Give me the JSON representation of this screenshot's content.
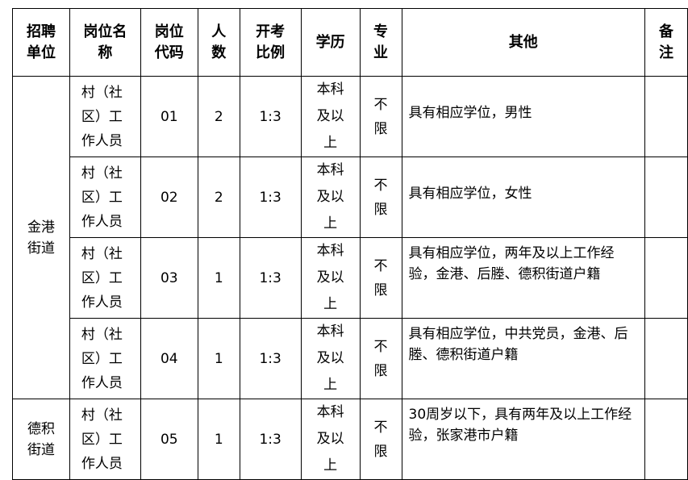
{
  "headers": [
    "招聘单位",
    "岗位名称",
    "岗位代码",
    "人数",
    "开考比例",
    "学历",
    "专业",
    "其他",
    "备注"
  ],
  "header_lines": [
    [
      "招聘",
      "单位"
    ],
    [
      "岗位名",
      "称"
    ],
    [
      "岗位",
      "代码"
    ],
    [
      "人",
      "数"
    ],
    [
      "开考",
      "比例"
    ],
    [
      "学历"
    ],
    [
      "专",
      "业"
    ],
    [
      "其他"
    ],
    [
      "备",
      "注"
    ]
  ],
  "units": [
    {
      "lines": [
        "金港",
        "街道"
      ]
    },
    {
      "lines": [
        "德积",
        "街道"
      ]
    }
  ],
  "rows": [
    {
      "name": [
        "村（社",
        "区）工",
        "作人员"
      ],
      "code": "01",
      "count": "2",
      "ratio": "1:3",
      "edu": [
        "本科",
        "及以",
        "上"
      ],
      "major": [
        "不",
        "限"
      ],
      "other": "具有相应学位，男性",
      "note": ""
    },
    {
      "name": [
        "村（社",
        "区）工",
        "作人员"
      ],
      "code": "02",
      "count": "2",
      "ratio": "1:3",
      "edu": [
        "本科",
        "及以",
        "上"
      ],
      "major": [
        "不",
        "限"
      ],
      "other": "具有相应学位，女性",
      "note": ""
    },
    {
      "name": [
        "村（社",
        "区）工",
        "作人员"
      ],
      "code": "03",
      "count": "1",
      "ratio": "1:3",
      "edu": [
        "本科",
        "及以",
        "上"
      ],
      "major": [
        "不",
        "限"
      ],
      "other": "具有相应学位，两年及以上工作经验，金港、后塍、德积街道户籍",
      "note": ""
    },
    {
      "name": [
        "村（社",
        "区）工",
        "作人员"
      ],
      "code": "04",
      "count": "1",
      "ratio": "1:3",
      "edu": [
        "本科",
        "及以",
        "上"
      ],
      "major": [
        "不",
        "限"
      ],
      "other": "具有相应学位，中共党员，金港、后塍、德积街道户籍",
      "note": ""
    },
    {
      "name": [
        "村（社",
        "区）工",
        "作人员"
      ],
      "code": "05",
      "count": "1",
      "ratio": "1:3",
      "edu": [
        "本科",
        "及以",
        "上"
      ],
      "major": [
        "不",
        "限"
      ],
      "other": "30周岁以下，具有两年及以上工作经验，张家港市户籍",
      "note": ""
    }
  ]
}
